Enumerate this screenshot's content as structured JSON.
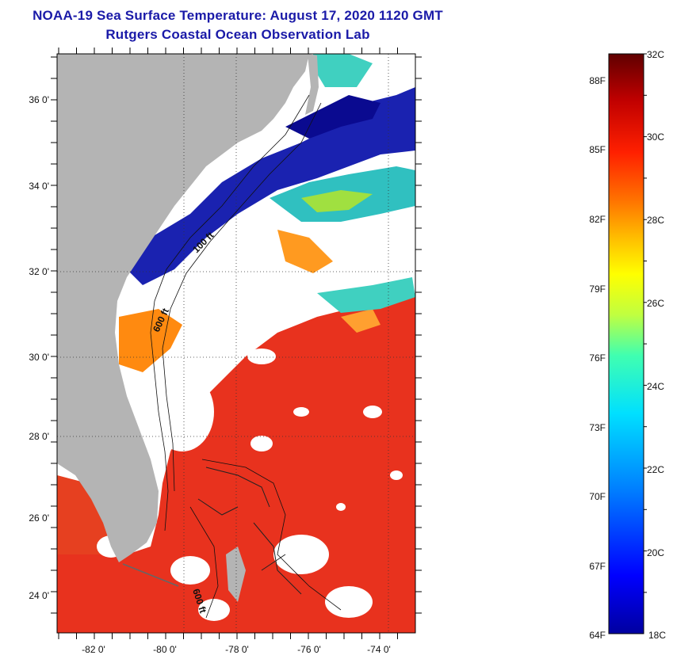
{
  "header": {
    "title": "NOAA-19 Sea Surface Temperature:  August 17, 2020 1120 GMT",
    "subtitle": "Rutgers Coastal Ocean Observation Lab"
  },
  "map": {
    "lat_labels": [
      "36 0'",
      "34 0'",
      "32 0'",
      "30 0'",
      "28 0'",
      "26 0'",
      "24 0'"
    ],
    "lon_labels": [
      "-82 0'",
      "-80 0'",
      "-78 0'",
      "-76 0'",
      "-74 0'"
    ],
    "contour_labels": [
      "100 ft",
      "600 ft",
      "600 ft"
    ],
    "colors": {
      "land": "#b4b4b4",
      "cloud": "#ffffff",
      "warm_water": "#e8321e",
      "cold_water": "#1a22b0"
    }
  },
  "colorbar": {
    "celsius_labels": [
      "32C",
      "30C",
      "28C",
      "26C",
      "24C",
      "22C",
      "20C",
      "18C"
    ],
    "fahrenheit_labels": [
      "88F",
      "85F",
      "82F",
      "79F",
      "76F",
      "73F",
      "70F",
      "67F",
      "64F"
    ],
    "celsius_range": [
      18,
      32
    ],
    "palette": [
      "#0000a0",
      "#0000ff",
      "#0080ff",
      "#00e0ff",
      "#40ffb0",
      "#c0ff40",
      "#ffff00",
      "#ffc000",
      "#ff7000",
      "#ff2000",
      "#c00000",
      "#600000"
    ]
  }
}
